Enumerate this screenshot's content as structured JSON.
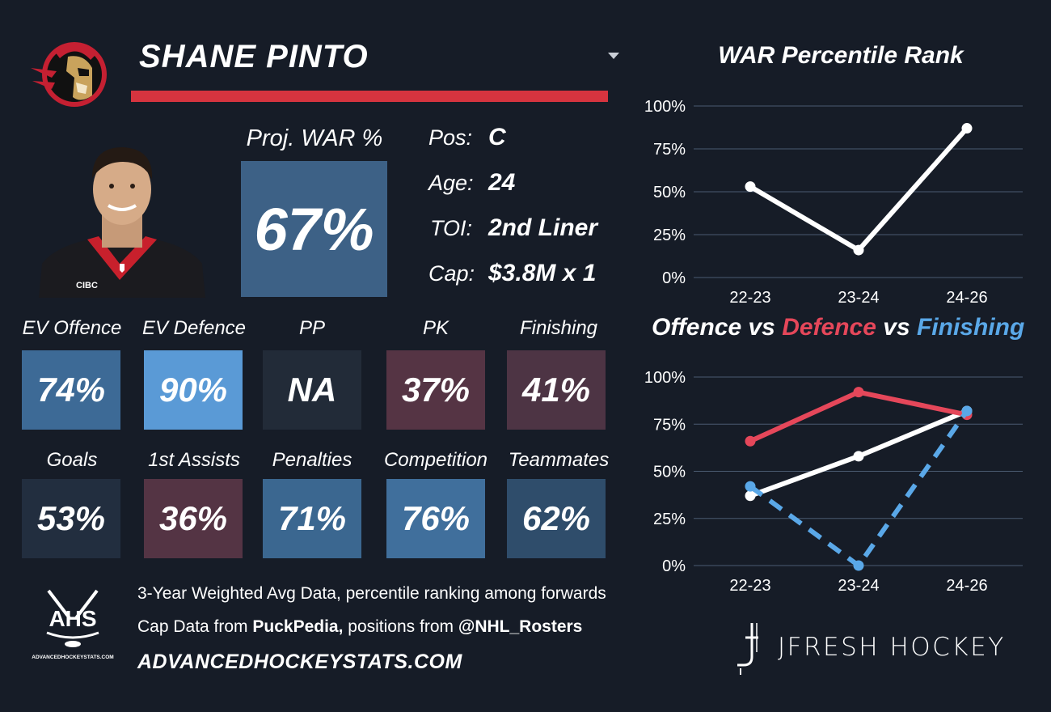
{
  "player": {
    "name": "SHANE PINTO",
    "jersey_text": "CIBC"
  },
  "projection": {
    "label": "Proj. WAR %",
    "value": "67%",
    "color": "#3d6186"
  },
  "info": [
    {
      "label": "Pos:",
      "value": "C"
    },
    {
      "label": "Age:",
      "value": "24"
    },
    {
      "label": "TOI:",
      "value": "2nd Liner"
    },
    {
      "label": "Cap:",
      "value": "$3.8M x 1"
    }
  ],
  "tiles_row1": [
    {
      "label": "EV Offence",
      "value": "74%",
      "color": "#3d6a96"
    },
    {
      "label": "EV Defence",
      "value": "90%",
      "color": "#5a9ad6"
    },
    {
      "label": "PP",
      "value": "NA",
      "color": "#222b38"
    },
    {
      "label": "PK",
      "value": "37%",
      "color": "#553444"
    },
    {
      "label": "Finishing",
      "value": "41%",
      "color": "#4d3444"
    }
  ],
  "tiles_row2": [
    {
      "label": "Goals",
      "value": "53%",
      "color": "#222e3f"
    },
    {
      "label": "1st Assists",
      "value": "36%",
      "color": "#543444"
    },
    {
      "label": "Penalties",
      "value": "71%",
      "color": "#3b6790"
    },
    {
      "label": "Competition",
      "value": "76%",
      "color": "#406f9c"
    },
    {
      "label": "Teammates",
      "value": "62%",
      "color": "#2f4d6b"
    }
  ],
  "footer": {
    "ahs_logo_text": "AHS",
    "ahs_logo_sub": "ADVANCEDHOCKEYSTATS.COM",
    "line1": "3-Year Weighted Avg Data, percentile ranking among forwards",
    "line2_prefix": "Cap Data from ",
    "line2_source": "PuckPedia,",
    "line2_mid": " positions from ",
    "line2_handle": "@NHL_Rosters",
    "url": "ADVANCEDHOCKEYSTATS.COM",
    "brand": "JFRESH HOCKEY"
  },
  "icons": {
    "team_logo": "senators-logo-icon",
    "dropdown": "caret-down-icon",
    "ahs_logo": "ahs-logo-icon",
    "jfresh_logo": "jfresh-logo-icon"
  },
  "colors": {
    "background": "#161c27",
    "accent_red": "#d6343f",
    "offence_red": "#e5475a",
    "finishing_blue": "#5aa8e8",
    "gridline": "#4a5a70"
  },
  "chart_data": [
    {
      "type": "line",
      "title": "WAR Percentile Rank",
      "categories": [
        "22-23",
        "23-24",
        "24-26"
      ],
      "series": [
        {
          "values": [
            53,
            16,
            87
          ],
          "color": "#ffffff",
          "style": "solid"
        }
      ],
      "yticks": [
        "0%",
        "25%",
        "50%",
        "75%",
        "100%"
      ],
      "ylim": [
        0,
        100
      ],
      "grid": true
    },
    {
      "type": "line",
      "title_parts": [
        {
          "text": "Offence",
          "color": "#ffffff"
        },
        {
          "text": " vs ",
          "color": "#ffffff"
        },
        {
          "text": "Defence",
          "color": "#e5475a"
        },
        {
          "text": " vs ",
          "color": "#ffffff"
        },
        {
          "text": "Finishing",
          "color": "#5aa8e8"
        }
      ],
      "categories": [
        "22-23",
        "23-24",
        "24-26"
      ],
      "series": [
        {
          "name": "Offence",
          "values": [
            37,
            58,
            82
          ],
          "color": "#ffffff",
          "style": "solid"
        },
        {
          "name": "Defence",
          "values": [
            66,
            92,
            80
          ],
          "color": "#e5475a",
          "style": "solid"
        },
        {
          "name": "Finishing",
          "values": [
            42,
            0,
            82
          ],
          "color": "#5aa8e8",
          "style": "dashed"
        }
      ],
      "yticks": [
        "0%",
        "25%",
        "50%",
        "75%",
        "100%"
      ],
      "ylim": [
        0,
        100
      ],
      "grid": true
    }
  ]
}
